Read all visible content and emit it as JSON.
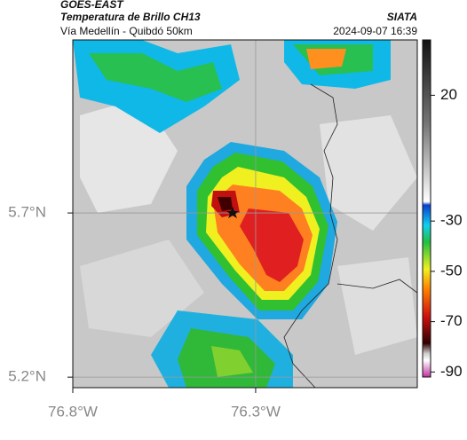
{
  "header": {
    "satellite": "GOES-EAST",
    "product": "Temperatura de Brillo CH13",
    "agency": "SIATA",
    "location": "Vía Medellín - Quibdó 50km",
    "timestamp": "2024-09-07 16:39"
  },
  "map": {
    "lon_lim": [
      -76.8,
      -75.858
    ],
    "lat_lim": [
      5.168,
      6.227
    ],
    "lon_ticks": [
      {
        "value": -76.8,
        "label": "76.8°W"
      },
      {
        "value": -76.3,
        "label": "76.3°W"
      }
    ],
    "lat_ticks": [
      {
        "value": 5.7,
        "label": "5.7°N"
      },
      {
        "value": 5.2,
        "label": "5.2°N"
      }
    ],
    "grid": true,
    "colorbar": {
      "lim": [
        42,
        -92
      ],
      "ticks": [
        20,
        -30,
        -50,
        -70,
        -90
      ]
    }
  }
}
